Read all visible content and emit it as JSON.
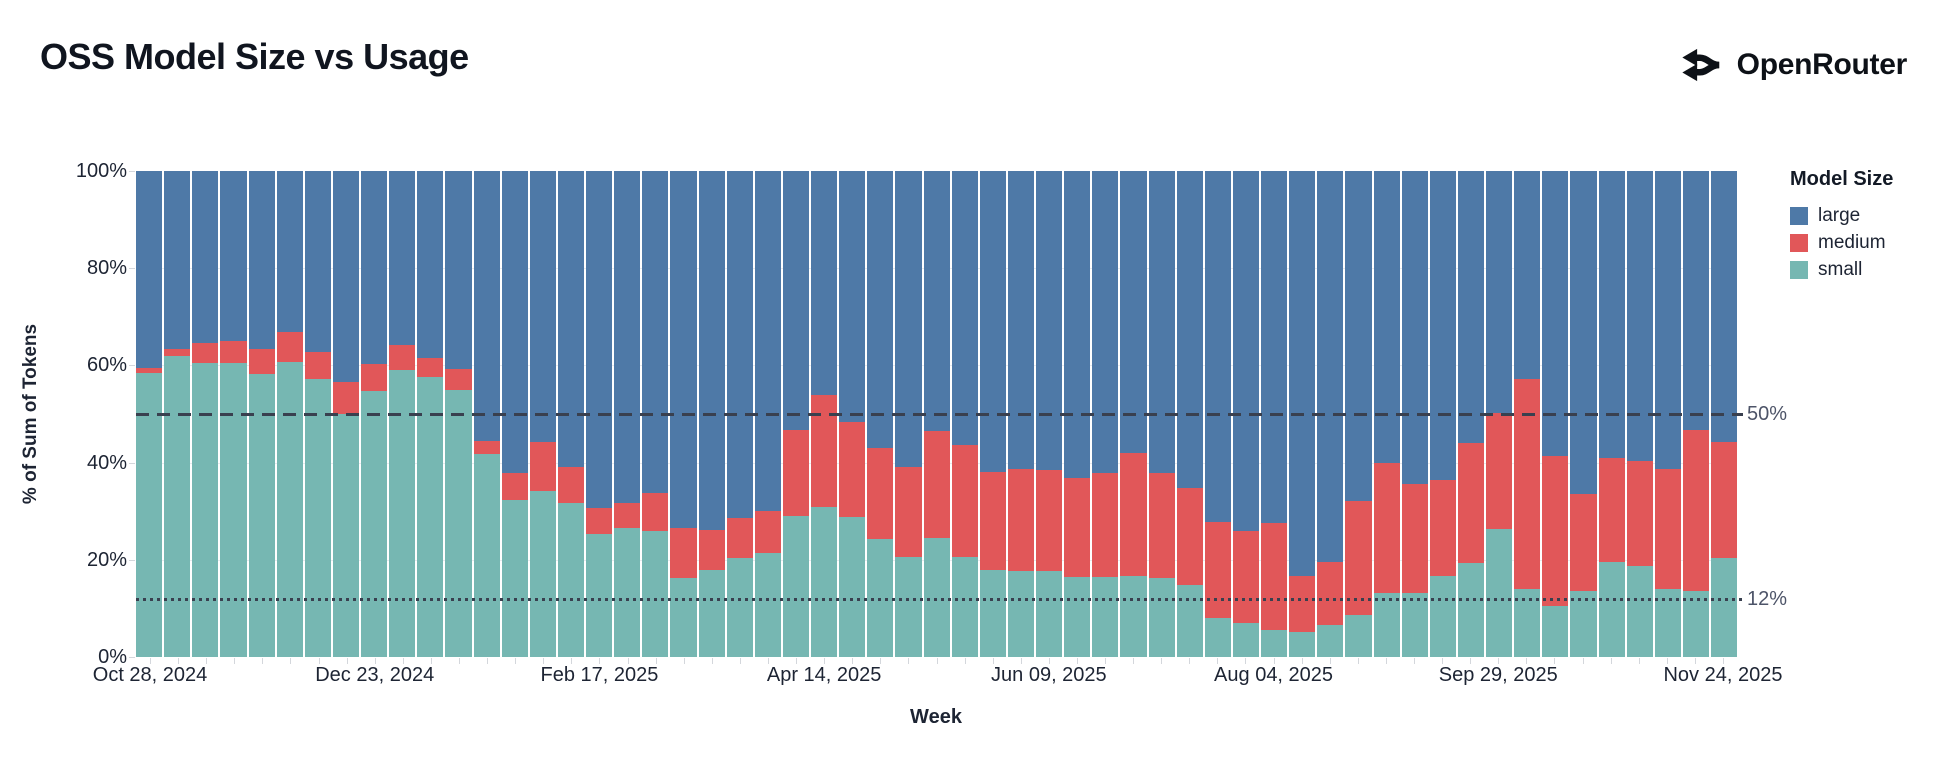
{
  "header": {
    "title": "OSS Model Size vs Usage",
    "brand": "OpenRouter"
  },
  "axes": {
    "y_title": "% of Sum of Tokens",
    "x_title": "Week",
    "y_ticks": [
      {
        "label": "100%",
        "value": 100
      },
      {
        "label": "80%",
        "value": 80
      },
      {
        "label": "60%",
        "value": 60
      },
      {
        "label": "40%",
        "value": 40
      },
      {
        "label": "20%",
        "value": 20
      },
      {
        "label": "0%",
        "value": 0
      }
    ],
    "x_tick_labels_shown": [
      {
        "index": 0,
        "label": "Oct 28, 2024"
      },
      {
        "index": 8,
        "label": "Dec 23, 2024"
      },
      {
        "index": 16,
        "label": "Feb 17, 2025"
      },
      {
        "index": 24,
        "label": "Apr 14, 2025"
      },
      {
        "index": 32,
        "label": "Jun 09, 2025"
      },
      {
        "index": 40,
        "label": "Aug 04, 2025"
      },
      {
        "index": 48,
        "label": "Sep 29, 2025"
      },
      {
        "index": 56,
        "label": "Nov 24, 2025"
      }
    ]
  },
  "legend": {
    "title": "Model Size",
    "items": [
      {
        "label": "large",
        "color": "#4e79a7"
      },
      {
        "label": "medium",
        "color": "#e15759"
      },
      {
        "label": "small",
        "color": "#76b7b2"
      }
    ]
  },
  "ref_lines": [
    {
      "label": "50%",
      "value": 50,
      "style": "dashed"
    },
    {
      "label": "12%",
      "value": 12,
      "style": "dotted"
    }
  ],
  "colors": {
    "large": "#4e79a7",
    "medium": "#e15759",
    "small": "#76b7b2",
    "grid": "#e9ebef",
    "ref_line": "#39404f",
    "ref_label": "#4d5468",
    "axis_text": "#1d2433"
  },
  "chart_data": {
    "type": "bar",
    "stacked": true,
    "normalized": "percent",
    "title": "OSS Model Size vs Usage",
    "xlabel": "Week",
    "ylabel": "% of Sum of Tokens",
    "ylim": [
      0,
      100
    ],
    "grid": "horizontal-light",
    "legend_position": "right",
    "stack_order_bottom_to_top": [
      "small",
      "medium",
      "large"
    ],
    "x": [
      "Oct 28, 2024",
      "Nov 04, 2024",
      "Nov 11, 2024",
      "Nov 18, 2024",
      "Nov 25, 2024",
      "Dec 02, 2024",
      "Dec 09, 2024",
      "Dec 16, 2024",
      "Dec 23, 2024",
      "Dec 30, 2024",
      "Jan 06, 2025",
      "Jan 13, 2025",
      "Jan 20, 2025",
      "Jan 27, 2025",
      "Feb 03, 2025",
      "Feb 10, 2025",
      "Feb 17, 2025",
      "Feb 24, 2025",
      "Mar 03, 2025",
      "Mar 10, 2025",
      "Mar 17, 2025",
      "Mar 24, 2025",
      "Mar 31, 2025",
      "Apr 07, 2025",
      "Apr 14, 2025",
      "Apr 21, 2025",
      "Apr 28, 2025",
      "May 05, 2025",
      "May 12, 2025",
      "May 19, 2025",
      "May 26, 2025",
      "Jun 02, 2025",
      "Jun 09, 2025",
      "Jun 16, 2025",
      "Jun 23, 2025",
      "Jun 30, 2025",
      "Jul 07, 2025",
      "Jul 14, 2025",
      "Jul 21, 2025",
      "Jul 28, 2025",
      "Aug 04, 2025",
      "Aug 11, 2025",
      "Aug 18, 2025",
      "Aug 25, 2025",
      "Sep 01, 2025",
      "Sep 08, 2025",
      "Sep 15, 2025",
      "Sep 22, 2025",
      "Sep 29, 2025",
      "Oct 06, 2025",
      "Oct 13, 2025",
      "Oct 20, 2025",
      "Oct 27, 2025",
      "Nov 03, 2025",
      "Nov 10, 2025",
      "Nov 17, 2025",
      "Nov 24, 2025"
    ],
    "series": [
      {
        "name": "small",
        "color": "#76b7b2",
        "values": [
          58.5,
          62.0,
          60.5,
          60.5,
          58.2,
          60.8,
          57.1,
          49.9,
          54.8,
          59.1,
          57.7,
          54.9,
          41.8,
          32.3,
          34.2,
          31.6,
          25.3,
          26.5,
          25.9,
          16.3,
          17.9,
          20.4,
          21.3,
          29.0,
          30.9,
          28.9,
          24.2,
          20.6,
          24.4,
          20.6,
          18.0,
          17.6,
          17.7,
          16.5,
          16.5,
          16.7,
          16.3,
          14.8,
          8.0,
          7.0,
          5.6,
          5.2,
          6.6,
          8.6,
          13.1,
          13.2,
          16.7,
          19.4,
          26.3,
          13.9,
          10.4,
          13.5,
          19.6,
          18.8,
          13.9,
          13.6,
          20.3
        ]
      },
      {
        "name": "medium",
        "color": "#e15759",
        "values": [
          1.0,
          1.3,
          4.2,
          4.5,
          5.1,
          6.0,
          5.7,
          6.7,
          5.5,
          5.0,
          3.9,
          4.3,
          2.6,
          5.5,
          10.1,
          7.4,
          5.3,
          5.1,
          7.9,
          10.2,
          8.2,
          8.1,
          8.8,
          17.8,
          23.0,
          19.5,
          18.9,
          18.4,
          22.2,
          23.0,
          20.1,
          21.0,
          20.8,
          20.3,
          21.4,
          25.3,
          21.5,
          19.9,
          19.8,
          19.0,
          22.0,
          11.5,
          13.0,
          23.4,
          26.9,
          22.3,
          19.7,
          24.6,
          24.0,
          43.2,
          31.0,
          20.0,
          21.3,
          21.6,
          24.7,
          33.2,
          24.0
        ]
      },
      {
        "name": "large",
        "color": "#4e79a7",
        "values": [
          40.5,
          36.7,
          35.3,
          35.0,
          36.7,
          33.2,
          37.2,
          43.4,
          39.7,
          35.9,
          38.4,
          40.8,
          55.6,
          62.2,
          55.7,
          61.0,
          69.4,
          68.4,
          66.2,
          73.5,
          73.9,
          71.5,
          69.9,
          53.2,
          46.1,
          51.6,
          56.9,
          61.0,
          53.4,
          56.4,
          61.9,
          61.4,
          61.5,
          63.2,
          62.1,
          58.0,
          62.2,
          65.3,
          72.2,
          74.0,
          72.4,
          83.3,
          80.4,
          68.0,
          60.0,
          64.5,
          63.6,
          56.0,
          49.7,
          42.9,
          58.6,
          66.5,
          59.1,
          59.6,
          61.4,
          53.2,
          55.7
        ]
      }
    ],
    "annotations": [
      {
        "label": "50%",
        "y": 50,
        "line_style": "dashed"
      },
      {
        "label": "12%",
        "y": 12,
        "line_style": "dotted"
      }
    ]
  }
}
